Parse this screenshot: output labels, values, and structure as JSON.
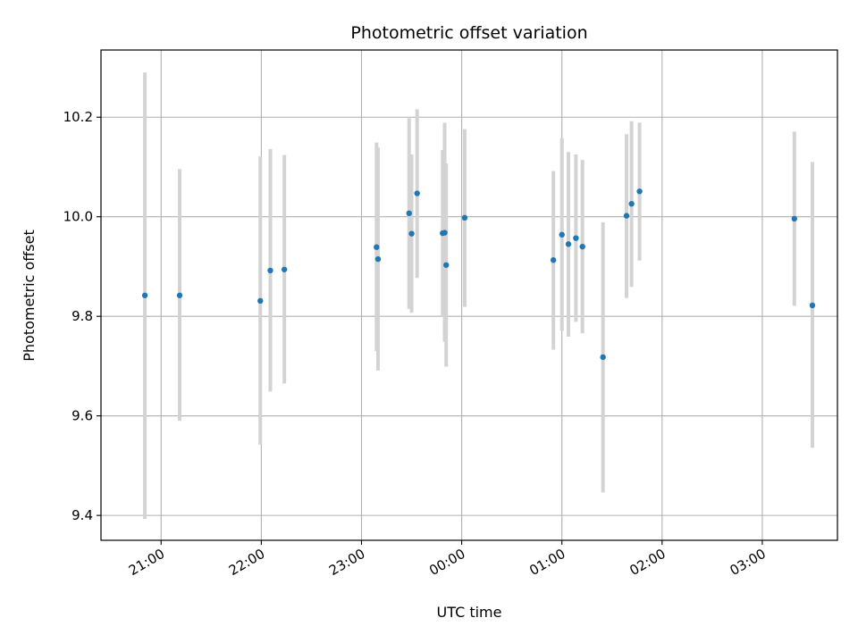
{
  "chart_data": {
    "type": "scatter",
    "title": "Photometric offset variation",
    "xlabel": "UTC time",
    "ylabel": "Photometric offset",
    "x_unit": "hours after 20:00 UTC",
    "xlim": [
      0.4,
      7.75
    ],
    "ylim": [
      9.35,
      10.335
    ],
    "grid": true,
    "colors": {
      "point": "#1f77b4",
      "errorbar": "#d3d3d3",
      "grid": "#b0b0b0",
      "axis": "#000000"
    },
    "xticks": [
      {
        "value": 1,
        "label": "21:00"
      },
      {
        "value": 2,
        "label": "22:00"
      },
      {
        "value": 3,
        "label": "23:00"
      },
      {
        "value": 4,
        "label": "00:00"
      },
      {
        "value": 5,
        "label": "01:00"
      },
      {
        "value": 6,
        "label": "02:00"
      },
      {
        "value": 7,
        "label": "03:00"
      }
    ],
    "yticks": [
      {
        "value": 9.4,
        "label": "9.4"
      },
      {
        "value": 9.6,
        "label": "9.6"
      },
      {
        "value": 9.8,
        "label": "9.8"
      },
      {
        "value": 10.0,
        "label": "10.0"
      },
      {
        "value": 10.2,
        "label": "10.2"
      }
    ],
    "points": [
      {
        "x": 0.838,
        "y": 9.842,
        "ylo": 9.393,
        "yhi": 10.29
      },
      {
        "x": 1.185,
        "y": 9.842,
        "ylo": 9.59,
        "yhi": 10.096
      },
      {
        "x": 1.99,
        "y": 9.831,
        "ylo": 9.542,
        "yhi": 10.121
      },
      {
        "x": 2.09,
        "y": 9.892,
        "ylo": 9.649,
        "yhi": 10.136
      },
      {
        "x": 2.23,
        "y": 9.894,
        "ylo": 9.665,
        "yhi": 10.124
      },
      {
        "x": 3.15,
        "y": 9.939,
        "ylo": 9.73,
        "yhi": 10.149
      },
      {
        "x": 3.165,
        "y": 9.915,
        "ylo": 9.691,
        "yhi": 10.139
      },
      {
        "x": 3.475,
        "y": 10.007,
        "ylo": 9.815,
        "yhi": 10.198
      },
      {
        "x": 3.5,
        "y": 9.966,
        "ylo": 9.807,
        "yhi": 10.125
      },
      {
        "x": 3.555,
        "y": 10.047,
        "ylo": 9.877,
        "yhi": 10.216
      },
      {
        "x": 3.81,
        "y": 9.967,
        "ylo": 9.799,
        "yhi": 10.134
      },
      {
        "x": 3.83,
        "y": 9.968,
        "ylo": 9.749,
        "yhi": 10.189
      },
      {
        "x": 3.845,
        "y": 9.903,
        "ylo": 9.699,
        "yhi": 10.107
      },
      {
        "x": 4.03,
        "y": 9.998,
        "ylo": 9.819,
        "yhi": 10.176
      },
      {
        "x": 4.915,
        "y": 9.913,
        "ylo": 9.733,
        "yhi": 10.092
      },
      {
        "x": 5.0,
        "y": 9.964,
        "ylo": 9.771,
        "yhi": 10.158
      },
      {
        "x": 5.065,
        "y": 9.945,
        "ylo": 9.759,
        "yhi": 10.13
      },
      {
        "x": 5.14,
        "y": 9.957,
        "ylo": 9.789,
        "yhi": 10.125
      },
      {
        "x": 5.205,
        "y": 9.94,
        "ylo": 9.766,
        "yhi": 10.114
      },
      {
        "x": 5.41,
        "y": 9.718,
        "ylo": 9.446,
        "yhi": 9.989
      },
      {
        "x": 5.645,
        "y": 10.002,
        "ylo": 9.837,
        "yhi": 10.166
      },
      {
        "x": 5.695,
        "y": 10.026,
        "ylo": 9.859,
        "yhi": 10.192
      },
      {
        "x": 5.775,
        "y": 10.051,
        "ylo": 9.912,
        "yhi": 10.189
      },
      {
        "x": 7.32,
        "y": 9.996,
        "ylo": 9.821,
        "yhi": 10.171
      },
      {
        "x": 7.5,
        "y": 9.822,
        "ylo": 9.536,
        "yhi": 10.11
      }
    ]
  }
}
